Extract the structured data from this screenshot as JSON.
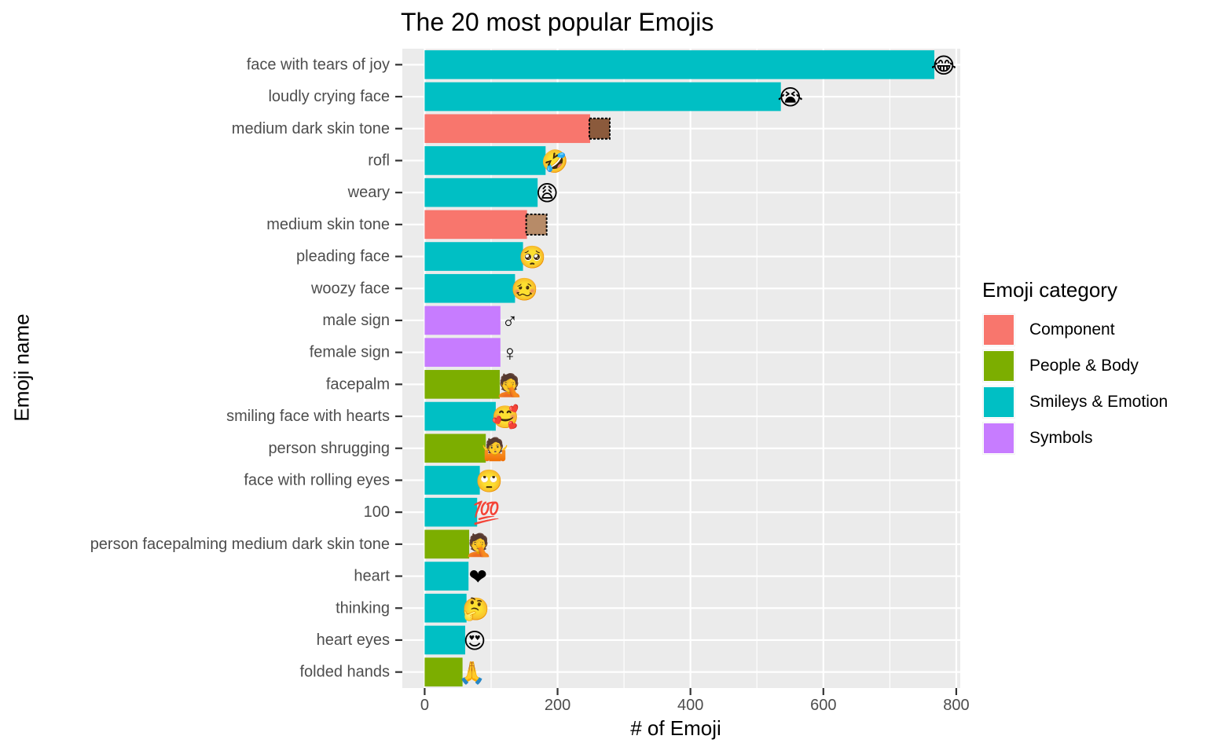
{
  "chart_data": {
    "type": "bar",
    "orientation": "horizontal",
    "title": "The 20 most popular Emojis",
    "xlabel": "# of Emoji",
    "ylabel": "Emoji name",
    "xlim": [
      0,
      800
    ],
    "xticks": [
      0,
      200,
      400,
      600,
      800
    ],
    "grid": true,
    "legend": {
      "title": "Emoji category",
      "position": "right",
      "entries": [
        {
          "label": "Component",
          "color": "#F8766D"
        },
        {
          "label": "People & Body",
          "color": "#7CAE00"
        },
        {
          "label": "Smileys & Emotion",
          "color": "#00BFC4"
        },
        {
          "label": "Symbols",
          "color": "#C77CFF"
        }
      ]
    },
    "bars": [
      {
        "name": "face with tears of joy",
        "value": 767,
        "category": "Smileys & Emotion",
        "icon": "face-with-tears-of-joy-icon",
        "glyph": "😂"
      },
      {
        "name": "loudly crying face",
        "value": 536,
        "category": "Smileys & Emotion",
        "icon": "loudly-crying-face-icon",
        "glyph": "😭"
      },
      {
        "name": "medium dark skin tone",
        "value": 249,
        "category": "Component",
        "icon": "medium-dark-skin-tone-swatch-icon",
        "swatch": "#8B5A3C"
      },
      {
        "name": "rofl",
        "value": 182,
        "category": "Smileys & Emotion",
        "icon": "rofl-icon",
        "glyph": "🤣"
      },
      {
        "name": "weary",
        "value": 170,
        "category": "Smileys & Emotion",
        "icon": "weary-face-icon",
        "glyph": "😩"
      },
      {
        "name": "medium skin tone",
        "value": 154,
        "category": "Component",
        "icon": "medium-skin-tone-swatch-icon",
        "swatch": "#B78B68"
      },
      {
        "name": "pleading face",
        "value": 148,
        "category": "Smileys & Emotion",
        "icon": "pleading-face-icon",
        "glyph": "🥺"
      },
      {
        "name": "woozy face",
        "value": 136,
        "category": "Smileys & Emotion",
        "icon": "woozy-face-icon",
        "glyph": "🥴"
      },
      {
        "name": "male sign",
        "value": 114,
        "category": "Symbols",
        "icon": "male-sign-icon",
        "glyph": "♂"
      },
      {
        "name": "female sign",
        "value": 114,
        "category": "Symbols",
        "icon": "female-sign-icon",
        "glyph": "♀"
      },
      {
        "name": "facepalm",
        "value": 113,
        "category": "People & Body",
        "icon": "facepalm-icon",
        "glyph": "🤦"
      },
      {
        "name": "smiling face with hearts",
        "value": 107,
        "category": "Smileys & Emotion",
        "icon": "smiling-face-with-hearts-icon",
        "glyph": "🥰"
      },
      {
        "name": "person shrugging",
        "value": 92,
        "category": "People & Body",
        "icon": "person-shrugging-icon",
        "glyph": "🤷"
      },
      {
        "name": "face with rolling eyes",
        "value": 83,
        "category": "Smileys & Emotion",
        "icon": "face-with-rolling-eyes-icon",
        "glyph": "🙄"
      },
      {
        "name": "100",
        "value": 79,
        "category": "Smileys & Emotion",
        "icon": "hundred-points-icon",
        "glyph": "💯"
      },
      {
        "name": "person facepalming medium dark skin tone",
        "value": 67,
        "category": "People & Body",
        "icon": "person-facepalming-dark-icon",
        "glyph": "🤦"
      },
      {
        "name": "heart",
        "value": 66,
        "category": "Smileys & Emotion",
        "icon": "red-heart-icon",
        "glyph": "❤"
      },
      {
        "name": "thinking",
        "value": 63,
        "category": "Smileys & Emotion",
        "icon": "thinking-face-icon",
        "glyph": "🤔"
      },
      {
        "name": "heart eyes",
        "value": 61,
        "category": "Smileys & Emotion",
        "icon": "heart-eyes-icon",
        "glyph": "😍"
      },
      {
        "name": "folded hands",
        "value": 57,
        "category": "People & Body",
        "icon": "folded-hands-icon",
        "glyph": "🙏"
      }
    ]
  }
}
